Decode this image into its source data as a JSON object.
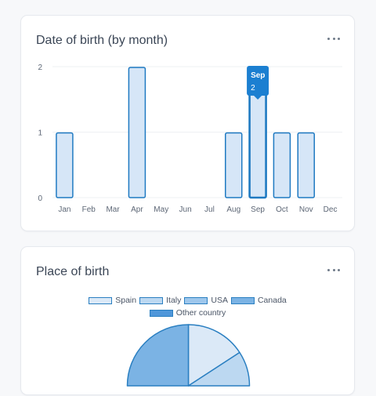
{
  "dob_card": {
    "title": "Date of birth (by month)",
    "menu_icon": "more-horizontal-icon"
  },
  "pob_card": {
    "title": "Place of birth",
    "menu_icon": "more-horizontal-icon"
  },
  "tooltip": {
    "month": "Sep",
    "value": "2"
  },
  "colors": {
    "bar_fill": "#d6e6f7",
    "bar_stroke": "#1f7ac2",
    "bar_active_fill": "#1b7fd1",
    "tooltip_bg": "#1b7fd1",
    "grid": "#eef0f3",
    "axis_text": "#5d6776"
  },
  "chart_data": [
    {
      "type": "bar",
      "title": "Date of birth (by month)",
      "categories": [
        "Jan",
        "Feb",
        "Mar",
        "Apr",
        "May",
        "Jun",
        "Jul",
        "Aug",
        "Sep",
        "Oct",
        "Nov",
        "Dec"
      ],
      "values": [
        1,
        0,
        0,
        2,
        0,
        0,
        0,
        1,
        2,
        1,
        1,
        0
      ],
      "ylim": [
        0,
        2
      ],
      "yticks": [
        "0",
        "1",
        "2"
      ],
      "grid": true,
      "highlighted": "Sep"
    },
    {
      "type": "pie",
      "title": "Place of birth",
      "labels": [
        "Spain",
        "Italy",
        "USA",
        "Canada",
        "Other country"
      ],
      "colors": [
        "#dbe9f7",
        "#bcd8f1",
        "#9ec7ec",
        "#7bb3e4",
        "#4f97da"
      ],
      "legend_position": "top",
      "visible_slices": [
        {
          "label": "Spain",
          "start_deg": 0,
          "end_deg": 57
        },
        {
          "label": "Italy",
          "start_deg": 57,
          "end_deg": 90
        },
        {
          "label": "Canada",
          "start_deg": 270,
          "end_deg": 360
        }
      ]
    }
  ]
}
